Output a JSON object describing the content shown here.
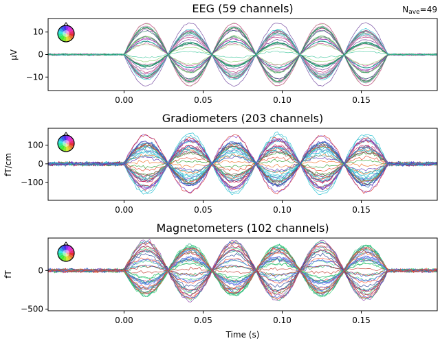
{
  "figure": {
    "nave_label": "N",
    "nave_sub": "ave",
    "nave_value": "=49",
    "xlabel": "Time (s)"
  },
  "chart_data": [
    {
      "type": "line",
      "title": "EEG (59 channels)",
      "ylabel": "µV",
      "xlim": [
        -0.048,
        0.198
      ],
      "ylim": [
        -16,
        16
      ],
      "xticks": [
        0.0,
        0.05,
        0.1,
        0.15
      ],
      "xtick_labels": [
        "0.00",
        "0.05",
        "0.10",
        "0.15"
      ],
      "yticks": [
        -10,
        0,
        10
      ],
      "ytick_labels": [
        "−10",
        "0",
        "10"
      ],
      "signal": {
        "start": 0.0,
        "end": 0.167,
        "period": 0.0556,
        "max_amplitude": 14.5,
        "channels": 59
      },
      "palette": [
        "#1fb08a",
        "#2e8b57",
        "#48c9a0",
        "#1b7a5a",
        "#a6d98a",
        "#8fd16f",
        "#e377c2",
        "#d6459b",
        "#c02a7a",
        "#f2a0cf",
        "#6a3d9a",
        "#9b2fae",
        "#17becf",
        "#0f6e4f"
      ]
    },
    {
      "type": "line",
      "title": "Gradiometers (203 channels)",
      "ylabel": "fT/cm",
      "xlim": [
        -0.048,
        0.198
      ],
      "ylim": [
        -195,
        190
      ],
      "xticks": [
        0.0,
        0.05,
        0.1,
        0.15
      ],
      "xtick_labels": [
        "0.00",
        "0.05",
        "0.10",
        "0.15"
      ],
      "yticks": [
        -100,
        0,
        100
      ],
      "ytick_labels": [
        "−100",
        "0",
        "100"
      ],
      "signal": {
        "start": 0.0,
        "end": 0.167,
        "period": 0.0556,
        "max_amplitude": 165,
        "channels": 203
      },
      "palette": [
        "#17becf",
        "#2bb5c9",
        "#4fc4d6",
        "#1a9fb0",
        "#7b3fd1",
        "#5b2bb5",
        "#d62728",
        "#e8432a",
        "#f07022",
        "#2ca02c",
        "#8c564b",
        "#1f5fbf",
        "#c2185b"
      ]
    },
    {
      "type": "line",
      "title": "Magnetometers (102 channels)",
      "ylabel": "fT",
      "xlim": [
        -0.048,
        0.198
      ],
      "ylim": [
        -520,
        420
      ],
      "xticks": [
        0.0,
        0.05,
        0.1,
        0.15
      ],
      "xtick_labels": [
        "0.00",
        "0.05",
        "0.10",
        "0.15"
      ],
      "yticks": [
        -500,
        0
      ],
      "ytick_labels": [
        "−500",
        "0"
      ],
      "signal": {
        "start": 0.0,
        "end": 0.167,
        "period": 0.0556,
        "max_amplitude": 390,
        "channels": 102
      },
      "palette": [
        "#2ecc71",
        "#3ddc84",
        "#27ae60",
        "#4169e1",
        "#3a5bd9",
        "#6a7fe8",
        "#e03c3c",
        "#c0392b",
        "#ff5733",
        "#8e44ad",
        "#1f3a93",
        "#16a085"
      ]
    }
  ]
}
